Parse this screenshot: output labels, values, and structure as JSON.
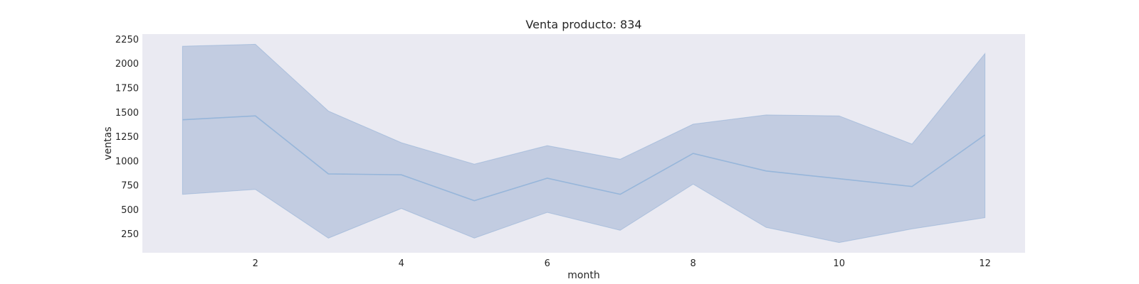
{
  "chart_data": {
    "type": "line",
    "title": "Venta producto: 834",
    "xlabel": "month",
    "ylabel": "ventas",
    "x": [
      1,
      2,
      3,
      4,
      5,
      6,
      7,
      8,
      9,
      10,
      11,
      12
    ],
    "series": [
      {
        "values": [
          1420,
          1460,
          865,
          855,
          590,
          820,
          655,
          1075,
          895,
          815,
          735,
          1265
        ],
        "ci_lower": [
          655,
          705,
          205,
          510,
          205,
          470,
          285,
          760,
          315,
          160,
          300,
          415
        ],
        "ci_upper": [
          2175,
          2195,
          1510,
          1185,
          965,
          1155,
          1015,
          1375,
          1470,
          1460,
          1170,
          2100
        ]
      }
    ],
    "xlim": [
      0.45,
      12.55
    ],
    "ylim": [
      55,
      2300
    ],
    "xticks": [
      2,
      4,
      6,
      8,
      10,
      12
    ],
    "yticks": [
      250,
      500,
      750,
      1000,
      1250,
      1500,
      1750,
      2000,
      2250
    ],
    "grid": false,
    "colors": {
      "plot_background": "#eaeaf2",
      "band": "#4c72b0",
      "line": "#8fb2d8"
    }
  }
}
